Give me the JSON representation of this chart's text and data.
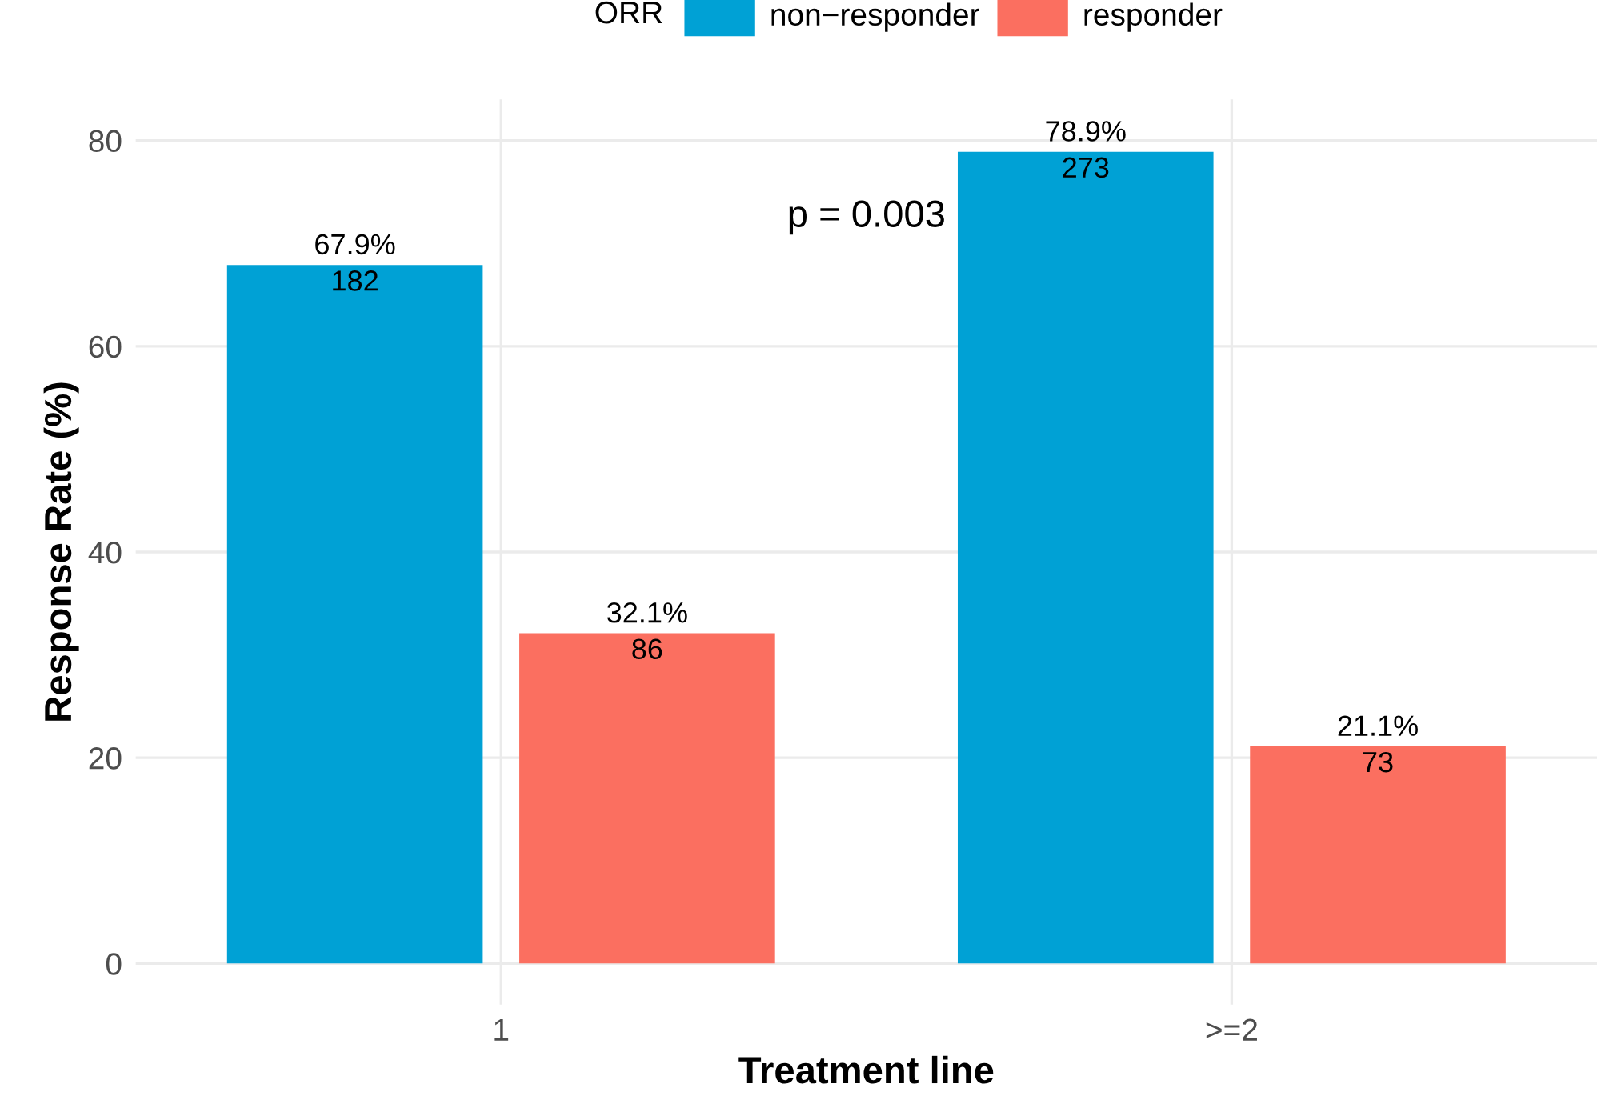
{
  "chart_data": {
    "type": "bar",
    "xlabel": "Treatment line",
    "ylabel": "Response Rate (%)",
    "legend_title": "ORR",
    "legend": "top",
    "grid": true,
    "categories": [
      "1",
      ">=2"
    ],
    "series": [
      {
        "name": "non−responder",
        "color": "#00a1d5",
        "values": [
          67.9,
          78.9
        ],
        "value_labels": [
          "67.9%\n182",
          "78.9%\n273"
        ]
      },
      {
        "name": "responder",
        "color": "#fb6f60",
        "values": [
          32.1,
          21.1
        ],
        "value_labels": [
          "32.1%\n86",
          "21.1%\n73"
        ]
      }
    ],
    "ylim": [
      -4,
      84
    ],
    "yticks": [
      0,
      20,
      40,
      60,
      80
    ],
    "annotations": [
      "p = 0.003"
    ]
  }
}
